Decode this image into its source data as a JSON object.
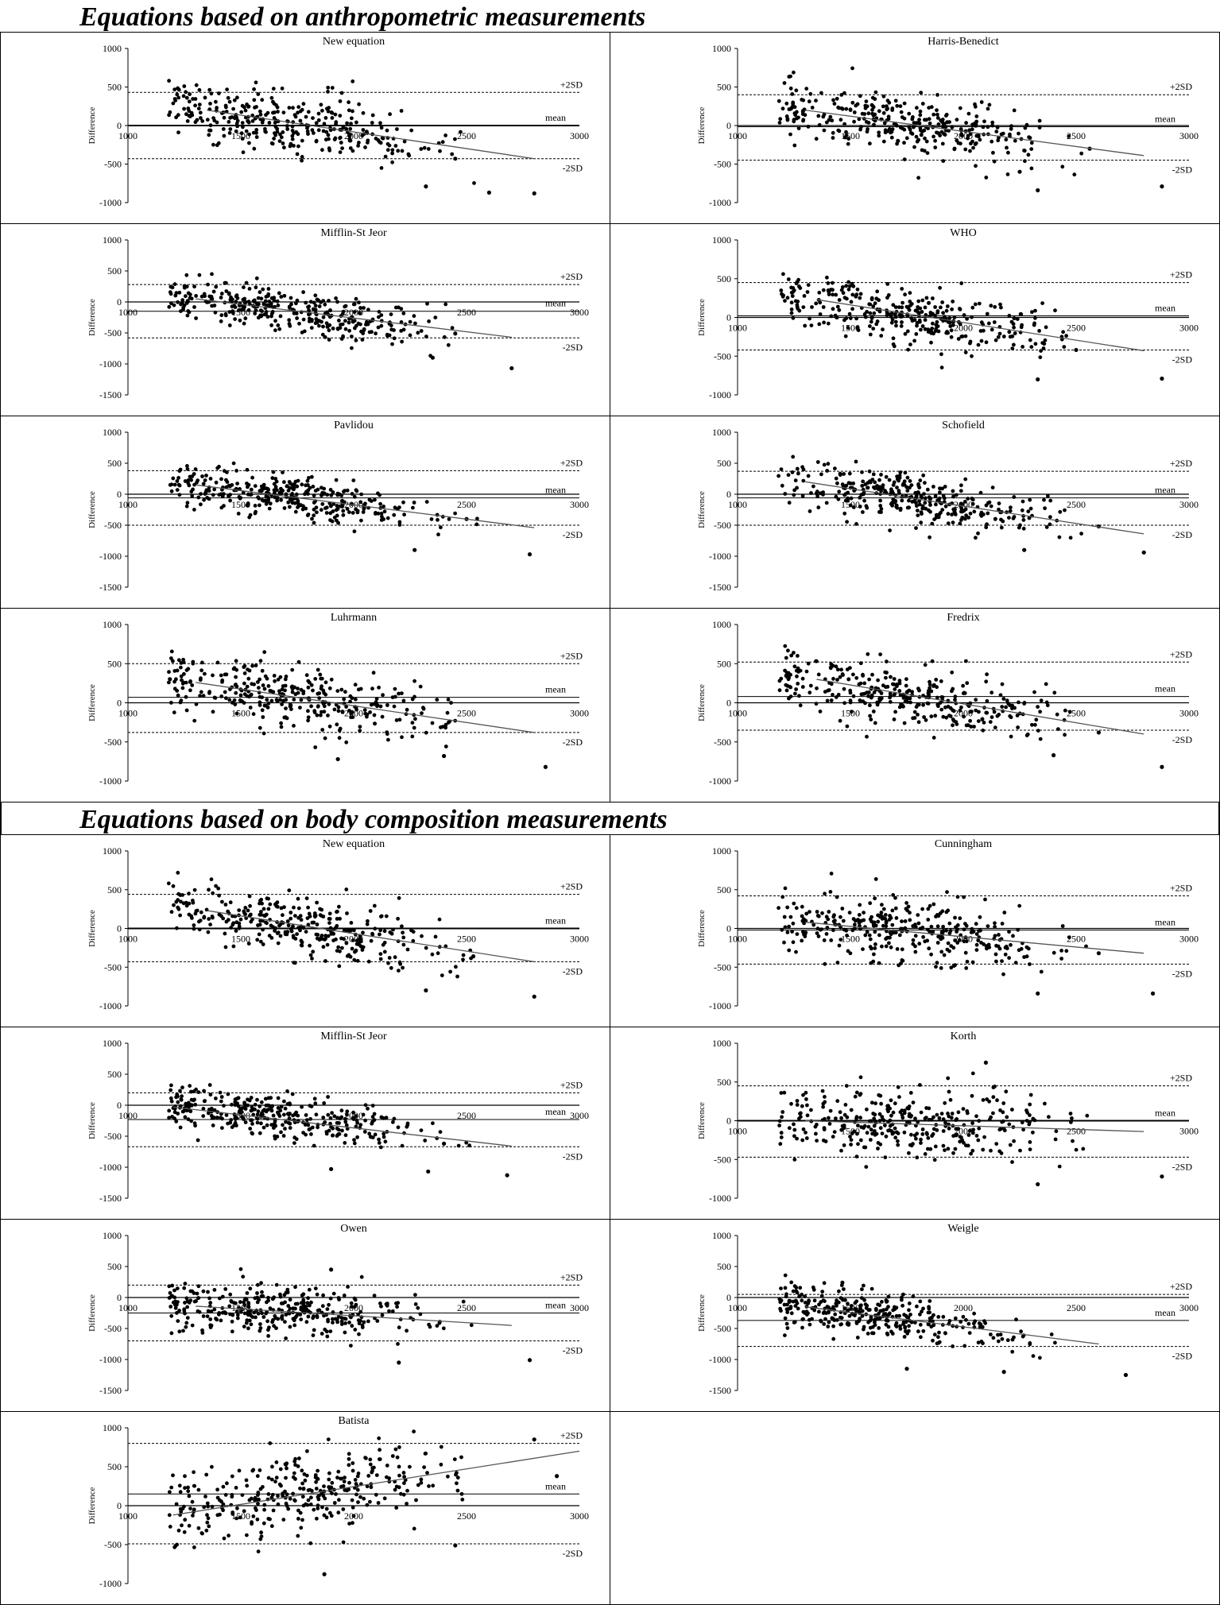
{
  "sections": {
    "anthropometric": "Equations based on anthropometric measurements",
    "body_composition": "Equations based on body composition measurements"
  },
  "labels": {
    "ylabel": "Difference",
    "upper": "+2SD",
    "lower": "-2SD",
    "mean": "mean"
  },
  "chart_data": [
    {
      "type": "scatter",
      "panel": "anthro-left-1",
      "title": "New equation",
      "mean_label_text": "mean",
      "xlim": [
        1000,
        3000
      ],
      "ylim": [
        -1000,
        1000
      ],
      "yticks": [
        1000,
        500,
        0,
        -500,
        -1000
      ],
      "xticks": [
        1000,
        1500,
        2000,
        2500,
        3000
      ],
      "mean": 0,
      "upper_2sd": 430,
      "lower_2sd": -430,
      "regression": [
        [
          1350,
          200
        ],
        [
          2800,
          -430
        ]
      ],
      "cloud": {
        "x_center": 1750,
        "x_spread": 330,
        "intercept": 200,
        "slope": -0.43,
        "noise": 180,
        "n": 330,
        "seed": 11
      },
      "outliers": [
        [
          2800,
          -880
        ],
        [
          2320,
          -790
        ],
        [
          2450,
          -430
        ],
        [
          2600,
          -870
        ]
      ]
    },
    {
      "type": "scatter",
      "panel": "anthro-right-1",
      "title": "Harris-Benedict",
      "mean_label_text": "mean",
      "xlim": [
        1000,
        3000
      ],
      "ylim": [
        -1000,
        1000
      ],
      "yticks": [
        1000,
        500,
        0,
        -500,
        -1000
      ],
      "xticks": [
        1000,
        1500,
        2000,
        2500,
        3000
      ],
      "mean": -15,
      "upper_2sd": 400,
      "lower_2sd": -450,
      "regression": [
        [
          1300,
          200
        ],
        [
          2800,
          -390
        ]
      ],
      "cloud": {
        "x_center": 1750,
        "x_spread": 330,
        "intercept": 195,
        "slope": -0.4,
        "noise": 185,
        "n": 330,
        "seed": 23
      },
      "outliers": [
        [
          2880,
          -790
        ],
        [
          2330,
          -840
        ],
        [
          2560,
          -300
        ],
        [
          2250,
          -600
        ]
      ]
    },
    {
      "type": "scatter",
      "panel": "anthro-left-2",
      "title": "Mifflin-St Jeor",
      "mean_label_text": "mean",
      "xlim": [
        1000,
        3000
      ],
      "ylim": [
        -1500,
        1000
      ],
      "yticks": [
        1000,
        500,
        0,
        -500,
        -1000,
        -1500
      ],
      "xticks": [
        1000,
        1500,
        2000,
        2500,
        3000
      ],
      "mean": -150,
      "upper_2sd": 280,
      "lower_2sd": -580,
      "regression": [
        [
          1300,
          50
        ],
        [
          2700,
          -570
        ]
      ],
      "cloud": {
        "x_center": 1700,
        "x_spread": 320,
        "intercept": 50,
        "slope": -0.44,
        "noise": 175,
        "n": 330,
        "seed": 37
      },
      "outliers": [
        [
          2700,
          -1070
        ],
        [
          2350,
          -900
        ],
        [
          2450,
          -510
        ]
      ]
    },
    {
      "type": "scatter",
      "panel": "anthro-right-2",
      "title": "WHO",
      "mean_label_text": "mean",
      "xlim": [
        1000,
        3000
      ],
      "ylim": [
        -1000,
        1000
      ],
      "yticks": [
        1000,
        500,
        0,
        -500,
        -1000
      ],
      "xticks": [
        1000,
        1500,
        2000,
        2500,
        3000
      ],
      "mean": 20,
      "upper_2sd": 450,
      "lower_2sd": -420,
      "regression": [
        [
          1350,
          230
        ],
        [
          2800,
          -430
        ]
      ],
      "cloud": {
        "x_center": 1760,
        "x_spread": 330,
        "intercept": 230,
        "slope": -0.45,
        "noise": 185,
        "n": 330,
        "seed": 41
      },
      "outliers": [
        [
          2880,
          -790
        ],
        [
          2330,
          -800
        ],
        [
          2500,
          -420
        ]
      ]
    },
    {
      "type": "scatter",
      "panel": "anthro-left-3",
      "title": "Pavlidou",
      "mean_label_text": "mean",
      "xlim": [
        1000,
        3000
      ],
      "ylim": [
        -1500,
        1000
      ],
      "yticks": [
        1000,
        500,
        0,
        -500,
        -1000,
        -1500
      ],
      "xticks": [
        1000,
        1500,
        2000,
        2500,
        3000
      ],
      "mean": -60,
      "upper_2sd": 380,
      "lower_2sd": -500,
      "regression": [
        [
          1300,
          150
        ],
        [
          2800,
          -540
        ]
      ],
      "cloud": {
        "x_center": 1720,
        "x_spread": 320,
        "intercept": 150,
        "slope": -0.46,
        "noise": 170,
        "n": 330,
        "seed": 53
      },
      "outliers": [
        [
          2780,
          -970
        ],
        [
          2270,
          -900
        ],
        [
          2500,
          -400
        ]
      ]
    },
    {
      "type": "scatter",
      "panel": "anthro-right-3",
      "title": "Schofield",
      "mean_label_text": "mean",
      "xlim": [
        1000,
        3000
      ],
      "ylim": [
        -1500,
        1000
      ],
      "yticks": [
        1000,
        500,
        0,
        -500,
        -1000,
        -1500
      ],
      "xticks": [
        1000,
        1500,
        2000,
        2500,
        3000
      ],
      "mean": -60,
      "upper_2sd": 370,
      "lower_2sd": -500,
      "regression": [
        [
          1300,
          200
        ],
        [
          2800,
          -640
        ]
      ],
      "cloud": {
        "x_center": 1720,
        "x_spread": 320,
        "intercept": 200,
        "slope": -0.56,
        "noise": 170,
        "n": 330,
        "seed": 67
      },
      "outliers": [
        [
          2800,
          -940
        ],
        [
          2270,
          -900
        ],
        [
          2600,
          -520
        ]
      ]
    },
    {
      "type": "scatter",
      "panel": "anthro-left-4",
      "title": "Luhrmann",
      "mean_label_text": "mean",
      "xlim": [
        1000,
        3000
      ],
      "ylim": [
        -1000,
        1000
      ],
      "yticks": [
        1000,
        500,
        0,
        -500,
        -1000
      ],
      "xticks": [
        1000,
        1500,
        2000,
        2500,
        3000
      ],
      "mean": 70,
      "upper_2sd": 500,
      "lower_2sd": -380,
      "regression": [
        [
          1300,
          260
        ],
        [
          2800,
          -380
        ]
      ],
      "cloud": {
        "x_center": 1720,
        "x_spread": 330,
        "intercept": 260,
        "slope": -0.43,
        "noise": 190,
        "n": 330,
        "seed": 71
      },
      "outliers": [
        [
          2850,
          -820
        ],
        [
          2400,
          -680
        ],
        [
          1930,
          -720
        ]
      ]
    },
    {
      "type": "scatter",
      "panel": "anthro-right-4",
      "title": "Fredrix",
      "mean_label_text": "mean",
      "xlim": [
        1000,
        3000
      ],
      "ylim": [
        -1000,
        1000
      ],
      "yticks": [
        1000,
        500,
        0,
        -500,
        -1000
      ],
      "xticks": [
        1000,
        1500,
        2000,
        2500,
        3000
      ],
      "mean": 80,
      "upper_2sd": 520,
      "lower_2sd": -350,
      "regression": [
        [
          1350,
          300
        ],
        [
          2800,
          -400
        ]
      ],
      "cloud": {
        "x_center": 1740,
        "x_spread": 330,
        "intercept": 300,
        "slope": -0.48,
        "noise": 190,
        "n": 330,
        "seed": 83
      },
      "outliers": [
        [
          2880,
          -820
        ],
        [
          2400,
          -670
        ],
        [
          2600,
          -380
        ]
      ]
    },
    {
      "type": "scatter",
      "panel": "body-left-1",
      "title": "New equation",
      "mean_label_text": "mean",
      "xlim": [
        1000,
        3000
      ],
      "ylim": [
        -1000,
        1000
      ],
      "yticks": [
        1000,
        500,
        0,
        -500,
        -1000
      ],
      "xticks": [
        1000,
        1500,
        2000,
        2500,
        3000
      ],
      "mean": 0,
      "upper_2sd": 440,
      "lower_2sd": -430,
      "regression": [
        [
          1350,
          230
        ],
        [
          2800,
          -430
        ]
      ],
      "cloud": {
        "x_center": 1750,
        "x_spread": 330,
        "intercept": 230,
        "slope": -0.45,
        "noise": 185,
        "n": 330,
        "seed": 97
      },
      "outliers": [
        [
          2800,
          -880
        ],
        [
          2320,
          -800
        ],
        [
          2530,
          -360
        ]
      ]
    },
    {
      "type": "scatter",
      "panel": "body-right-1",
      "title": "Cunningham",
      "mean_label_text": "mean",
      "xlim": [
        1000,
        3000
      ],
      "ylim": [
        -1000,
        1000
      ],
      "yticks": [
        1000,
        500,
        0,
        -500,
        -1000
      ],
      "xticks": [
        1000,
        1500,
        2000,
        2500,
        3000
      ],
      "mean": -20,
      "upper_2sd": 420,
      "lower_2sd": -460,
      "regression": [
        [
          1300,
          80
        ],
        [
          2800,
          -320
        ]
      ],
      "cloud": {
        "x_center": 1750,
        "x_spread": 330,
        "intercept": 80,
        "slope": -0.27,
        "noise": 200,
        "n": 330,
        "seed": 101
      },
      "outliers": [
        [
          2840,
          -840
        ],
        [
          2330,
          -840
        ],
        [
          2600,
          -320
        ]
      ]
    },
    {
      "type": "scatter",
      "panel": "body-left-2",
      "title": "Mifflin-St Jeor",
      "mean_label_text": "mean",
      "xlim": [
        1000,
        3000
      ],
      "ylim": [
        -1500,
        1000
      ],
      "yticks": [
        1000,
        500,
        0,
        -500,
        -1000,
        -1500
      ],
      "xticks": [
        1000,
        1500,
        2000,
        2500,
        3000
      ],
      "mean": -230,
      "upper_2sd": 200,
      "lower_2sd": -670,
      "regression": [
        [
          1200,
          -30
        ],
        [
          2700,
          -660
        ]
      ],
      "cloud": {
        "x_center": 1650,
        "x_spread": 320,
        "intercept": -30,
        "slope": -0.42,
        "noise": 170,
        "n": 330,
        "seed": 113
      },
      "outliers": [
        [
          2680,
          -1130
        ],
        [
          2330,
          -1070
        ],
        [
          1900,
          -1030
        ],
        [
          2400,
          -620
        ]
      ]
    },
    {
      "type": "scatter",
      "panel": "body-right-2",
      "title": "Korth",
      "mean_label_text": "mean",
      "xlim": [
        1000,
        3000
      ],
      "ylim": [
        -1000,
        1000
      ],
      "yticks": [
        1000,
        500,
        0,
        -500,
        -1000
      ],
      "xticks": [
        1000,
        1500,
        2000,
        2500,
        3000
      ],
      "mean": 0,
      "upper_2sd": 450,
      "lower_2sd": -470,
      "regression": [
        [
          1300,
          0
        ],
        [
          2800,
          -140
        ]
      ],
      "cloud": {
        "x_center": 1780,
        "x_spread": 330,
        "intercept": 20,
        "slope": -0.09,
        "noise": 220,
        "n": 330,
        "seed": 127
      },
      "outliers": [
        [
          2880,
          -720
        ],
        [
          2330,
          -820
        ],
        [
          2100,
          750
        ]
      ]
    },
    {
      "type": "scatter",
      "panel": "body-left-3",
      "title": "Owen",
      "mean_label_text": "mean",
      "xlim": [
        1000,
        3000
      ],
      "ylim": [
        -1500,
        1000
      ],
      "yticks": [
        1000,
        500,
        0,
        -500,
        -1000,
        -1500
      ],
      "xticks": [
        1000,
        1500,
        2000,
        2500,
        3000
      ],
      "mean": -250,
      "upper_2sd": 200,
      "lower_2sd": -700,
      "regression": [
        [
          1300,
          -140
        ],
        [
          2700,
          -450
        ]
      ],
      "cloud": {
        "x_center": 1650,
        "x_spread": 320,
        "intercept": -130,
        "slope": -0.22,
        "noise": 190,
        "n": 330,
        "seed": 131
      },
      "outliers": [
        [
          2780,
          -1010
        ],
        [
          2200,
          -1050
        ],
        [
          1900,
          450
        ]
      ]
    },
    {
      "type": "scatter",
      "panel": "body-right-3",
      "title": "Weigle",
      "mean_label_text": "mean",
      "xlim": [
        1000,
        3000
      ],
      "ylim": [
        -1500,
        1000
      ],
      "yticks": [
        1000,
        500,
        0,
        -500,
        -1000,
        -1500
      ],
      "xticks": [
        1000,
        1500,
        2000,
        2500,
        3000
      ],
      "mean": -370,
      "upper_2sd": 50,
      "lower_2sd": -790,
      "regression": [
        [
          1300,
          -150
        ],
        [
          2600,
          -750
        ]
      ],
      "cloud": {
        "x_center": 1620,
        "x_spread": 300,
        "intercept": -150,
        "slope": -0.46,
        "noise": 180,
        "n": 330,
        "seed": 139
      },
      "outliers": [
        [
          2720,
          -1250
        ],
        [
          2180,
          -1200
        ],
        [
          1750,
          -1150
        ]
      ]
    },
    {
      "type": "scatter",
      "panel": "body-left-4",
      "title": "Batista",
      "mean_label_text": "mean",
      "xlim": [
        1000,
        3000
      ],
      "ylim": [
        -1000,
        1000
      ],
      "yticks": [
        1000,
        500,
        0,
        -500,
        -1000
      ],
      "xticks": [
        1000,
        1500,
        2000,
        2500,
        3000
      ],
      "mean": 150,
      "upper_2sd": 800,
      "lower_2sd": -490,
      "regression": [
        [
          1200,
          -120
        ],
        [
          3000,
          700
        ]
      ],
      "cloud": {
        "x_center": 1750,
        "x_spread": 370,
        "intercept": -60,
        "slope": 0.44,
        "noise": 250,
        "n": 330,
        "seed": 149
      },
      "outliers": [
        [
          1870,
          -880
        ],
        [
          2450,
          -510
        ],
        [
          2900,
          380
        ],
        [
          2800,
          850
        ]
      ]
    }
  ]
}
